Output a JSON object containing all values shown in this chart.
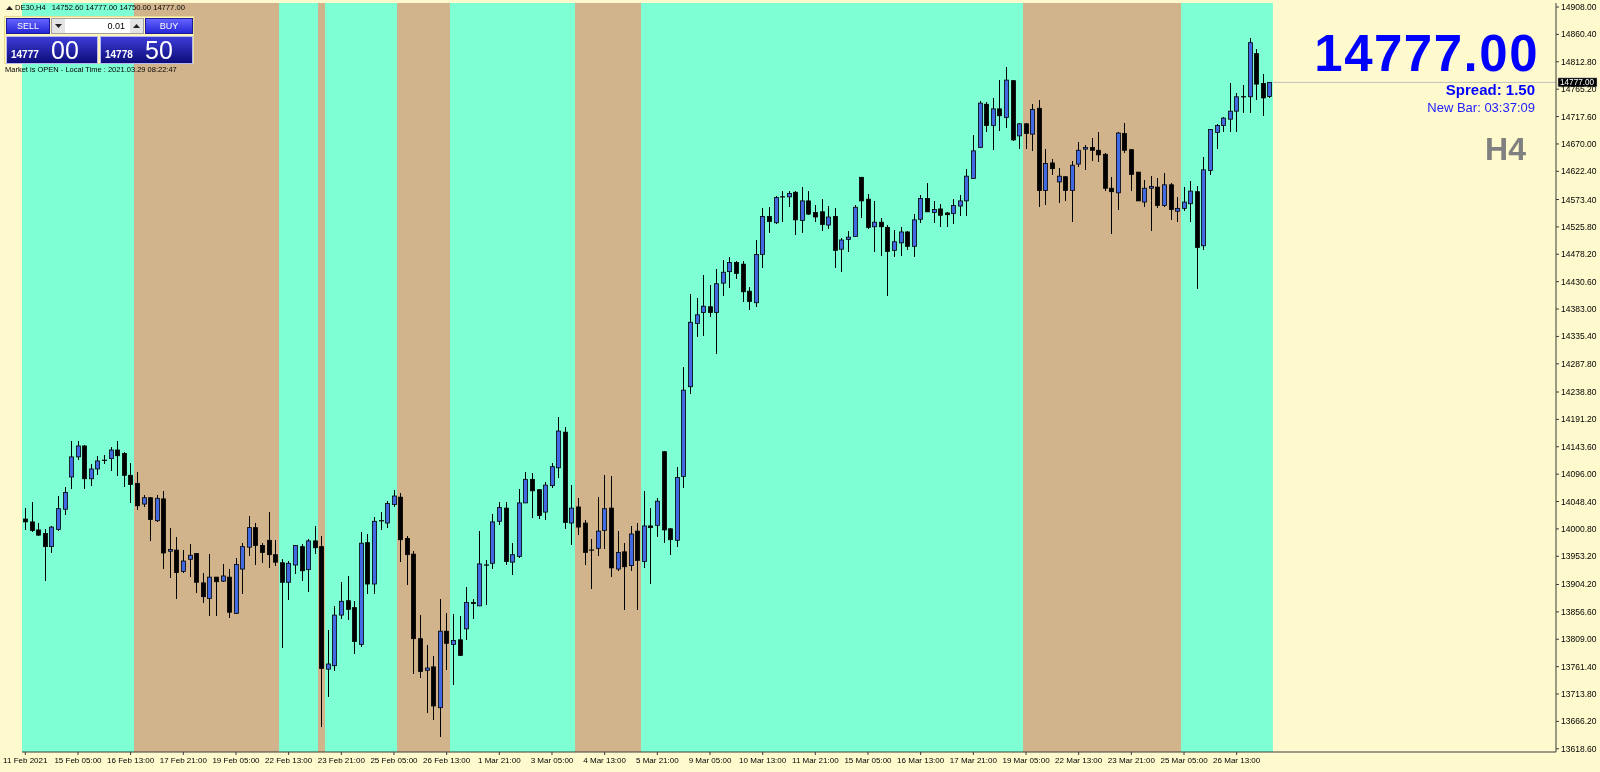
{
  "chart_data": {
    "type": "candlestick",
    "title": "DE30,H4",
    "subtitle": "14752.60 14777.00 14750.00 14777.00",
    "categories": [
      "11 Feb 2021",
      null,
      null,
      null,
      null,
      null,
      null,
      null,
      "15 Feb 05:00",
      null,
      null,
      null,
      null,
      null,
      null,
      null,
      "16 Feb 13:00",
      null,
      null,
      null,
      null,
      null,
      null,
      null,
      "17 Feb 21:00",
      null,
      null,
      null,
      null,
      null,
      null,
      null,
      "19 Feb 05:00",
      null,
      null,
      null,
      null,
      null,
      null,
      null,
      "22 Feb 13:00",
      null,
      null,
      null,
      null,
      null,
      null,
      null,
      "23 Feb 21:00",
      null,
      null,
      null,
      null,
      null,
      null,
      null,
      "25 Feb 05:00",
      null,
      null,
      null,
      null,
      null,
      null,
      null,
      "26 Feb 13:00",
      null,
      null,
      null,
      null,
      null,
      null,
      null,
      "1 Mar 21:00",
      null,
      null,
      null,
      null,
      null,
      null,
      null,
      "3 Mar 05:00",
      null,
      null,
      null,
      null,
      null,
      null,
      null,
      "4 Mar 13:00",
      null,
      null,
      null,
      null,
      null,
      null,
      null,
      "5 Mar 21:00",
      null,
      null,
      null,
      null,
      null,
      null,
      null,
      "9 Mar 05:00",
      null,
      null,
      null,
      null,
      null,
      null,
      null,
      "10 Mar 13:00",
      null,
      null,
      null,
      null,
      null,
      null,
      null,
      "11 Mar 21:00",
      null,
      null,
      null,
      null,
      null,
      null,
      null,
      "15 Mar 05:00",
      null,
      null,
      null,
      null,
      null,
      null,
      null,
      "16 Mar 13:00",
      null,
      null,
      null,
      null,
      null,
      null,
      null,
      "17 Mar 21:00",
      null,
      null,
      null,
      null,
      null,
      null,
      null,
      "19 Mar 05:00",
      null,
      null,
      null,
      null,
      null,
      null,
      null,
      "22 Mar 13:00",
      null,
      null,
      null,
      null,
      null,
      null,
      null,
      "23 Mar 21:00",
      null,
      null,
      null,
      null,
      null,
      null,
      null,
      "25 Mar 05:00",
      null,
      null,
      null,
      null,
      null,
      null,
      null,
      "26 Mar 13:00",
      null,
      null,
      null,
      null,
      null,
      null,
      null,
      null,
      null,
      null,
      null,
      null,
      null,
      null,
      null,
      null,
      null,
      null,
      null,
      null,
      null,
      null,
      null,
      null,
      null,
      null,
      null,
      null,
      null,
      null,
      null,
      null,
      null,
      null,
      null,
      null,
      null,
      null,
      null,
      null,
      null,
      null,
      null,
      null,
      null,
      null,
      null,
      null
    ],
    "ohlc": [
      [
        14018,
        14037,
        13999,
        14013
      ],
      [
        14013,
        14048,
        13995,
        13998
      ],
      [
        13999,
        14011,
        13989,
        13990
      ],
      [
        13993,
        14000,
        13911,
        13970
      ],
      [
        13970,
        14005,
        13959,
        14004
      ],
      [
        14000,
        14058,
        13998,
        14036
      ],
      [
        14035,
        14073,
        14025,
        14064
      ],
      [
        14091,
        14154,
        14070,
        14126
      ],
      [
        14126,
        14154,
        14120,
        14145
      ],
      [
        14145,
        14146,
        14071,
        14088
      ],
      [
        14088,
        14114,
        14076,
        14105
      ],
      [
        14105,
        14128,
        14094,
        14119
      ],
      [
        14120,
        14130,
        14113,
        14120
      ],
      [
        14123,
        14144,
        14102,
        14138
      ],
      [
        14138,
        14154,
        14092,
        14128
      ],
      [
        14132,
        14135,
        14074,
        14094
      ],
      [
        14094,
        14115,
        14045,
        14078
      ],
      [
        14080,
        14099,
        14033,
        14041
      ],
      [
        14044,
        14060,
        14039,
        14055
      ],
      [
        14055,
        14057,
        13979,
        14017
      ],
      [
        14015,
        14060,
        14012,
        14054
      ],
      [
        14053,
        14067,
        13931,
        13959
      ],
      [
        13962,
        14003,
        13916,
        13965
      ],
      [
        13964,
        13986,
        13879,
        13925
      ],
      [
        13927,
        13964,
        13925,
        13945
      ],
      [
        13948,
        13974,
        13918,
        13955
      ],
      [
        13958,
        13959,
        13890,
        13908
      ],
      [
        13907,
        13924,
        13872,
        13883
      ],
      [
        13880,
        13957,
        13849,
        13917
      ],
      [
        13917,
        13918,
        13850,
        13909
      ],
      [
        13910,
        13940,
        13909,
        13919
      ],
      [
        13917,
        13931,
        13846,
        13856
      ],
      [
        13854,
        13951,
        13853,
        13939
      ],
      [
        13931,
        13976,
        13887,
        13970
      ],
      [
        13969,
        14024,
        13953,
        14003
      ],
      [
        14003,
        14011,
        13938,
        13972
      ],
      [
        13972,
        13976,
        13941,
        13960
      ],
      [
        13981,
        14031,
        13933,
        13956
      ],
      [
        13956,
        13981,
        13936,
        13943
      ],
      [
        13942,
        13948,
        13794,
        13908
      ],
      [
        13908,
        13945,
        13878,
        13941
      ],
      [
        13938,
        13973,
        13922,
        13972
      ],
      [
        13970,
        13975,
        13911,
        13928
      ],
      [
        13930,
        13984,
        13892,
        13980
      ],
      [
        13980,
        14005,
        13957,
        13968
      ],
      [
        13970,
        13989,
        13656,
        13758
      ],
      [
        13757,
        13825,
        13708,
        13766
      ],
      [
        13763,
        13866,
        13753,
        13851
      ],
      [
        13851,
        13908,
        13844,
        13875
      ],
      [
        13876,
        13919,
        13843,
        13861
      ],
      [
        13864,
        13876,
        13783,
        13805
      ],
      [
        13800,
        13995,
        13796,
        13976
      ],
      [
        13977,
        13992,
        13887,
        13905
      ],
      [
        13905,
        14021,
        13887,
        14014
      ],
      [
        14015,
        14030,
        13999,
        14015
      ],
      [
        14011,
        14050,
        14003,
        14045
      ],
      [
        14043,
        14069,
        14039,
        14058
      ],
      [
        14056,
        14063,
        13944,
        13982
      ],
      [
        13984,
        13988,
        13904,
        13956
      ],
      [
        13957,
        13963,
        13748,
        13810
      ],
      [
        13810,
        13852,
        13741,
        13753
      ],
      [
        13755,
        13799,
        13680,
        13759
      ],
      [
        13761,
        13780,
        13668,
        13693
      ],
      [
        13690,
        13879,
        13639,
        13823
      ],
      [
        13823,
        13855,
        13755,
        13802
      ],
      [
        13800,
        13853,
        13729,
        13807
      ],
      [
        13808,
        13849,
        13780,
        13781
      ],
      [
        13827,
        13900,
        13808,
        13873
      ],
      [
        13873,
        13879,
        13844,
        13871
      ],
      [
        13867,
        13997,
        13866,
        13940
      ],
      [
        13938,
        13947,
        13869,
        13938
      ],
      [
        13941,
        14026,
        13931,
        14013
      ],
      [
        14014,
        14048,
        14007,
        14038
      ],
      [
        14037,
        14048,
        13938,
        13944
      ],
      [
        13943,
        13976,
        13921,
        13956
      ],
      [
        13953,
        14070,
        13950,
        14046
      ],
      [
        14046,
        14099,
        14045,
        14087
      ],
      [
        14087,
        14098,
        14019,
        14067
      ],
      [
        14069,
        14071,
        14018,
        14024
      ],
      [
        14030,
        14083,
        14017,
        14077
      ],
      [
        14076,
        14115,
        14072,
        14109
      ],
      [
        14107,
        14195,
        14089,
        14171
      ],
      [
        14169,
        14178,
        14000,
        14012
      ],
      [
        14011,
        14077,
        13973,
        14037
      ],
      [
        14039,
        14054,
        13991,
        14004
      ],
      [
        14011,
        14017,
        13938,
        13960
      ],
      [
        13964,
        13983,
        13896,
        13964
      ],
      [
        13967,
        14057,
        13953,
        13997
      ],
      [
        13998,
        14095,
        13966,
        14036
      ],
      [
        14037,
        14093,
        13918,
        13933
      ],
      [
        13931,
        13997,
        13927,
        13960
      ],
      [
        13961,
        13977,
        13860,
        13935
      ],
      [
        13937,
        14006,
        13927,
        13992
      ],
      [
        13997,
        14011,
        13859,
        13946
      ],
      [
        13944,
        14067,
        13933,
        14006
      ],
      [
        14006,
        14038,
        13905,
        14003
      ],
      [
        14007,
        14055,
        13986,
        14049
      ],
      [
        14135,
        14137,
        13976,
        13999
      ],
      [
        14001,
        14002,
        13955,
        13982
      ],
      [
        13981,
        14108,
        13969,
        14090
      ],
      [
        14092,
        14282,
        14072,
        14242
      ],
      [
        14248,
        14409,
        14236,
        14360
      ],
      [
        14358,
        14402,
        14335,
        14373
      ],
      [
        14377,
        14442,
        14336,
        14388
      ],
      [
        14387,
        14424,
        14370,
        14377
      ],
      [
        14377,
        14452,
        14304,
        14427
      ],
      [
        14428,
        14468,
        14406,
        14447
      ],
      [
        14448,
        14474,
        14420,
        14464
      ],
      [
        14464,
        14467,
        14436,
        14445
      ],
      [
        14461,
        14467,
        14396,
        14413
      ],
      [
        14414,
        14421,
        14381,
        14396
      ],
      [
        14394,
        14503,
        14386,
        14478
      ],
      [
        14478,
        14558,
        14454,
        14544
      ],
      [
        14544,
        14560,
        14515,
        14535
      ],
      [
        14533,
        14579,
        14530,
        14577
      ],
      [
        14578,
        14589,
        14535,
        14578
      ],
      [
        14578,
        14589,
        14561,
        14584
      ],
      [
        14586,
        14588,
        14512,
        14538
      ],
      [
        14537,
        14595,
        14516,
        14571
      ],
      [
        14571,
        14589,
        14547,
        14548
      ],
      [
        14551,
        14563,
        14535,
        14543
      ],
      [
        14552,
        14574,
        14519,
        14530
      ],
      [
        14529,
        14562,
        14523,
        14543
      ],
      [
        14544,
        14558,
        14455,
        14485
      ],
      [
        14487,
        14507,
        14447,
        14503
      ],
      [
        14504,
        14518,
        14483,
        14508
      ],
      [
        14509,
        14563,
        14508,
        14560
      ],
      [
        14612,
        14613,
        14541,
        14571
      ],
      [
        14574,
        14583,
        14523,
        14525
      ],
      [
        14526,
        14570,
        14482,
        14534
      ],
      [
        14534,
        14542,
        14476,
        14526
      ],
      [
        14525,
        14529,
        14405,
        14483
      ],
      [
        14485,
        14520,
        14473,
        14500
      ],
      [
        14498,
        14526,
        14476,
        14517
      ],
      [
        14517,
        14519,
        14486,
        14492
      ],
      [
        14492,
        14549,
        14474,
        14538
      ],
      [
        14539,
        14581,
        14532,
        14575
      ],
      [
        14575,
        14602,
        14551,
        14552
      ],
      [
        14551,
        14570,
        14532,
        14556
      ],
      [
        14557,
        14566,
        14525,
        14546
      ],
      [
        14550,
        14551,
        14526,
        14547
      ],
      [
        14549,
        14575,
        14531,
        14563
      ],
      [
        14562,
        14581,
        14544,
        14571
      ],
      [
        14571,
        14626,
        14545,
        14614
      ],
      [
        14610,
        14686,
        14609,
        14658
      ],
      [
        14664,
        14745,
        14663,
        14741
      ],
      [
        14739,
        14743,
        14690,
        14702
      ],
      [
        14702,
        14750,
        14660,
        14731
      ],
      [
        14731,
        14781,
        14692,
        14719
      ],
      [
        14716,
        14804,
        14697,
        14781
      ],
      [
        14780,
        14781,
        14675,
        14677
      ],
      [
        14684,
        14707,
        14661,
        14705
      ],
      [
        14705,
        14706,
        14662,
        14688
      ],
      [
        14687,
        14739,
        14658,
        14730
      ],
      [
        14732,
        14747,
        14560,
        14589
      ],
      [
        14589,
        14661,
        14563,
        14636
      ],
      [
        14637,
        14644,
        14616,
        14627
      ],
      [
        14604,
        14628,
        14567,
        14614
      ],
      [
        14613,
        14614,
        14571,
        14589
      ],
      [
        14589,
        14640,
        14535,
        14633
      ],
      [
        14635,
        14674,
        14630,
        14659
      ],
      [
        14661,
        14668,
        14624,
        14664
      ],
      [
        14664,
        14681,
        14640,
        14659
      ],
      [
        14659,
        14690,
        14639,
        14651
      ],
      [
        14652,
        14654,
        14589,
        14593
      ],
      [
        14593,
        14613,
        14514,
        14587
      ],
      [
        14585,
        14690,
        14555,
        14689
      ],
      [
        14688,
        14707,
        14654,
        14659
      ],
      [
        14660,
        14661,
        14589,
        14617
      ],
      [
        14621,
        14622,
        14570,
        14571
      ],
      [
        14569,
        14607,
        14561,
        14593
      ],
      [
        14593,
        14614,
        14518,
        14596
      ],
      [
        14595,
        14611,
        14559,
        14563
      ],
      [
        14563,
        14619,
        14561,
        14599
      ],
      [
        14599,
        14602,
        14537,
        14556
      ],
      [
        14553,
        14578,
        14535,
        14558
      ],
      [
        14558,
        14596,
        14554,
        14569
      ],
      [
        14566,
        14606,
        14535,
        14588
      ],
      [
        14587,
        14597,
        14418,
        14490
      ],
      [
        14493,
        14647,
        14485,
        14625
      ],
      [
        14624,
        14696,
        14616,
        14695
      ],
      [
        14690,
        14705,
        14661,
        14702
      ],
      [
        14702,
        14717,
        14690,
        14715
      ],
      [
        14713,
        14776,
        14690,
        14727
      ],
      [
        14727,
        14758,
        14690,
        14752
      ],
      [
        14752,
        14772,
        14724,
        14752
      ],
      [
        14752,
        14855,
        14724,
        14846
      ],
      [
        14827,
        14835,
        14746,
        14774
      ],
      [
        14775,
        14792,
        14719,
        14750
      ],
      [
        14752.6,
        14777,
        14750,
        14777
      ],
      null,
      null,
      null,
      null,
      null,
      null,
      null,
      null,
      null,
      null,
      null,
      null,
      null,
      null,
      null,
      null,
      null,
      null,
      null,
      null,
      null,
      null,
      null,
      null,
      null,
      null,
      null,
      null,
      null,
      null,
      null,
      null,
      null,
      null,
      null,
      null,
      null,
      null,
      null,
      null,
      null,
      null,
      null
    ],
    "colors": [
      "#000000",
      "#000000",
      "#000000",
      "#000000",
      "#4169e1",
      "#4169e1",
      "#4169e1",
      "#4169e1",
      "#4169e1",
      "#000000",
      "#4169e1",
      "#4169e1",
      "#000000",
      "#4169e1",
      "#000000",
      "#000000",
      "#000000",
      "#000000",
      "#4169e1",
      "#000000",
      "#4169e1",
      "#000000",
      "#4169e1",
      "#000000",
      "#4169e1",
      "#4169e1",
      "#000000",
      "#000000",
      "#4169e1",
      "#000000",
      "#4169e1",
      "#000000",
      "#4169e1",
      "#4169e1",
      "#4169e1",
      "#000000",
      "#000000",
      "#000000",
      "#000000",
      "#000000",
      "#4169e1",
      "#4169e1",
      "#000000",
      "#4169e1",
      "#000000",
      "#000000",
      "#4169e1",
      "#4169e1",
      "#4169e1",
      "#000000",
      "#000000",
      "#4169e1",
      "#000000",
      "#4169e1",
      "#000000",
      "#4169e1",
      "#4169e1",
      "#000000",
      "#000000",
      "#000000",
      "#000000",
      "#4169e1",
      "#000000",
      "#4169e1",
      "#000000",
      "#4169e1",
      "#000000",
      "#4169e1",
      "#000000",
      "#4169e1",
      "#000000",
      "#4169e1",
      "#4169e1",
      "#000000",
      "#4169e1",
      "#4169e1",
      "#4169e1",
      "#000000",
      "#000000",
      "#4169e1",
      "#4169e1",
      "#4169e1",
      "#000000",
      "#4169e1",
      "#000000",
      "#000000",
      "#000000",
      "#4169e1",
      "#4169e1",
      "#000000",
      "#4169e1",
      "#000000",
      "#4169e1",
      "#000000",
      "#4169e1",
      "#000000",
      "#4169e1",
      "#000000",
      "#000000",
      "#4169e1",
      "#4169e1",
      "#4169e1",
      "#4169e1",
      "#4169e1",
      "#000000",
      "#4169e1",
      "#4169e1",
      "#4169e1",
      "#000000",
      "#000000",
      "#000000",
      "#4169e1",
      "#4169e1",
      "#000000",
      "#4169e1",
      "#000000",
      "#4169e1",
      "#000000",
      "#4169e1",
      "#000000",
      "#000000",
      "#000000",
      "#4169e1",
      "#000000",
      "#4169e1",
      "#4169e1",
      "#4169e1",
      "#000000",
      "#000000",
      "#4169e1",
      "#000000",
      "#000000",
      "#4169e1",
      "#4169e1",
      "#000000",
      "#4169e1",
      "#4169e1",
      "#000000",
      "#4169e1",
      "#000000",
      "#000000",
      "#4169e1",
      "#4169e1",
      "#4169e1",
      "#4169e1",
      "#4169e1",
      "#000000",
      "#4169e1",
      "#000000",
      "#4169e1",
      "#000000",
      "#4169e1",
      "#000000",
      "#4169e1",
      "#000000",
      "#4169e1",
      "#000000",
      "#4169e1",
      "#000000",
      "#4169e1",
      "#4169e1",
      "#4169e1",
      "#000000",
      "#000000",
      "#000000",
      "#000000",
      "#4169e1",
      "#000000",
      "#000000",
      "#000000",
      "#4169e1",
      "#4169e1",
      "#000000",
      "#4169e1",
      "#000000",
      "#4169e1",
      "#4169e1",
      "#4169e1",
      "#000000",
      "#4169e1",
      "#4169e1",
      "#4169e1",
      "#4169e1",
      "#4169e1",
      "#4169e1",
      "#000000",
      "#4169e1",
      "#000000",
      "#000000",
      "#4169e1",
      null,
      null,
      null,
      null,
      null,
      null,
      null,
      null,
      null,
      null,
      null,
      null,
      null,
      null,
      null,
      null,
      null,
      null,
      null,
      null,
      null,
      null,
      null,
      null,
      null,
      null,
      null,
      null,
      null,
      null,
      null,
      null,
      null,
      null,
      null,
      null,
      null,
      null,
      null,
      null,
      null,
      null,
      null
    ],
    "ylim": [
      13613,
      14915
    ],
    "yticks": [
      {
        "value": 14908,
        "label": "14908.00"
      },
      {
        "value": 14860.4,
        "label": "14860.40"
      },
      {
        "value": 14812.8,
        "label": "14812.80"
      },
      {
        "value": 14765.2,
        "label": "14765.20"
      },
      {
        "value": 14717.6,
        "label": "14717.60"
      },
      {
        "value": 14670,
        "label": "14670.00"
      },
      {
        "value": 14622.4,
        "label": "14622.40"
      },
      {
        "value": 14573.4,
        "label": "14573.40"
      },
      {
        "value": 14525.8,
        "label": "14525.80"
      },
      {
        "value": 14478.2,
        "label": "14478.20"
      },
      {
        "value": 14430.6,
        "label": "14430.60"
      },
      {
        "value": 14383,
        "label": "14383.00"
      },
      {
        "value": 14335.4,
        "label": "14335.40"
      },
      {
        "value": 14287.8,
        "label": "14287.80"
      },
      {
        "value": 14238.8,
        "label": "14238.80"
      },
      {
        "value": 14191.2,
        "label": "14191.20"
      },
      {
        "value": 14143.6,
        "label": "14143.60"
      },
      {
        "value": 14096,
        "label": "14096.00"
      },
      {
        "value": 14048.4,
        "label": "14048.40"
      },
      {
        "value": 14000.8,
        "label": "14000.80"
      },
      {
        "value": 13953.2,
        "label": "13953.20"
      },
      {
        "value": 13904.2,
        "label": "13904.20"
      },
      {
        "value": 13856.6,
        "label": "13856.60"
      },
      {
        "value": 13809,
        "label": "13809.00"
      },
      {
        "value": 13761.4,
        "label": "13761.40"
      },
      {
        "value": 13713.8,
        "label": "13713.80"
      },
      {
        "value": 13666.2,
        "label": "13666.20"
      },
      {
        "value": 13618.6,
        "label": "13618.60"
      }
    ],
    "ref_lines": [
      {
        "axis": "y",
        "value": 14777,
        "label": "14777.00",
        "color": "#c0c0c0"
      }
    ],
    "annotations": [
      "SELL",
      "0.01",
      "BUY",
      "14777",
      "00",
      "14778",
      "50",
      "Market is OPEN - Local Time : 2021.03.29 08:22:47",
      "14777.00",
      "Spread: 1.50",
      "New Bar: 03:37:09",
      "H4"
    ]
  }
}
